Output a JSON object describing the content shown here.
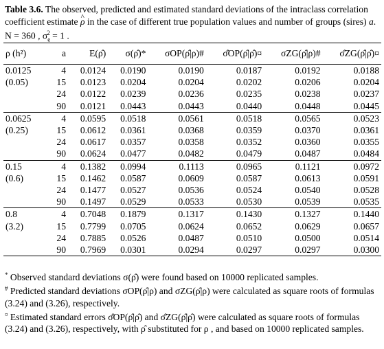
{
  "caption": {
    "label": "Table 3.6.",
    "text1": " The observed, predicted and estimated standard deviations of the intraclass correlation coefficient estimate ",
    "rho": "ρ",
    "text2": " in the case of different true population values and number of groups (sires) ",
    "a": "a",
    "text3": ". N = 360 , σ",
    "sub": "e",
    "sup": "2",
    "text4": " = 1 ."
  },
  "headers": {
    "rho_h2": "ρ (h²)",
    "a": "a",
    "e_rho": "E(ρ̂)",
    "sigma": "σ(ρ̂)*",
    "sigma_op": "σOP(ρ̂|ρ)#",
    "sigma_op_hat": "σ̂OP(ρ̂|ρ̂)¤",
    "sigma_zg": "σZG(ρ̂|ρ)#",
    "sigma_zg_hat": "σ̂ZG(ρ̂|ρ̂)¤"
  },
  "groups": [
    {
      "rho": "0.0125",
      "h2": "(0.05)",
      "rows": [
        {
          "a": "4",
          "e": "0.0124",
          "s": "0.0190",
          "op": "0.0190",
          "oph": "0.0187",
          "zg": "0.0192",
          "zgh": "0.0188"
        },
        {
          "a": "15",
          "e": "0.0123",
          "s": "0.0204",
          "op": "0.0204",
          "oph": "0.0202",
          "zg": "0.0206",
          "zgh": "0.0204"
        },
        {
          "a": "24",
          "e": "0.0122",
          "s": "0.0239",
          "op": "0.0236",
          "oph": "0.0235",
          "zg": "0.0238",
          "zgh": "0.0237"
        },
        {
          "a": "90",
          "e": "0.0121",
          "s": "0.0443",
          "op": "0.0443",
          "oph": "0.0440",
          "zg": "0.0448",
          "zgh": "0.0445"
        }
      ]
    },
    {
      "rho": "0.0625",
      "h2": "(0.25)",
      "rows": [
        {
          "a": "4",
          "e": "0.0595",
          "s": "0.0518",
          "op": "0.0561",
          "oph": "0.0518",
          "zg": "0.0565",
          "zgh": "0.0523"
        },
        {
          "a": "15",
          "e": "0.0612",
          "s": "0.0361",
          "op": "0.0368",
          "oph": "0.0359",
          "zg": "0.0370",
          "zgh": "0.0361"
        },
        {
          "a": "24",
          "e": "0.0617",
          "s": "0.0357",
          "op": "0.0358",
          "oph": "0.0352",
          "zg": "0.0360",
          "zgh": "0.0355"
        },
        {
          "a": "90",
          "e": "0.0624",
          "s": "0.0477",
          "op": "0.0482",
          "oph": "0.0479",
          "zg": "0.0487",
          "zgh": "0.0484"
        }
      ]
    },
    {
      "rho": "0.15",
      "h2": "(0.6)",
      "rows": [
        {
          "a": "4",
          "e": "0.1382",
          "s": "0.0994",
          "op": "0.1113",
          "oph": "0.0965",
          "zg": "0.1121",
          "zgh": "0.0972"
        },
        {
          "a": "15",
          "e": "0.1462",
          "s": "0.0587",
          "op": "0.0609",
          "oph": "0.0587",
          "zg": "0.0613",
          "zgh": "0.0591"
        },
        {
          "a": "24",
          "e": "0.1477",
          "s": "0.0527",
          "op": "0.0536",
          "oph": "0.0524",
          "zg": "0.0540",
          "zgh": "0.0528"
        },
        {
          "a": "90",
          "e": "0.1497",
          "s": "0.0529",
          "op": "0.0533",
          "oph": "0.0530",
          "zg": "0.0539",
          "zgh": "0.0535"
        }
      ]
    },
    {
      "rho": "0.8",
      "h2": "(3.2)",
      "rows": [
        {
          "a": "4",
          "e": "0.7048",
          "s": "0.1879",
          "op": "0.1317",
          "oph": "0.1430",
          "zg": "0.1327",
          "zgh": "0.1440"
        },
        {
          "a": "15",
          "e": "0.7799",
          "s": "0.0705",
          "op": "0.0624",
          "oph": "0.0652",
          "zg": "0.0629",
          "zgh": "0.0657"
        },
        {
          "a": "24",
          "e": "0.7885",
          "s": "0.0526",
          "op": "0.0487",
          "oph": "0.0510",
          "zg": "0.0500",
          "zgh": "0.0514"
        },
        {
          "a": "90",
          "e": "0.7969",
          "s": "0.0301",
          "op": "0.0294",
          "oph": "0.0297",
          "zg": "0.0297",
          "zgh": "0.0300"
        }
      ]
    }
  ],
  "notes": {
    "n1_mark": "*",
    "n1_text": " Observed standard deviations σ(ρ̂) were found based on 10000 replicated samples.",
    "n2_mark": "#",
    "n2_text": " Predicted standard deviations σOP(ρ̂|ρ) and σZG(ρ̂|ρ) were calculated as square roots of formulas (3.24) and (3.26), respectively.",
    "n3_mark": "¤",
    "n3_text": " Estimated standard errors σ̂OP(ρ̂|ρ̂) and σ̂ZG(ρ̂|ρ̂) were calculated as square roots of formulas (3.24) and (3.26), respectively, with ρ̂ substituted for ρ , and based on 10000 replicated samples."
  }
}
